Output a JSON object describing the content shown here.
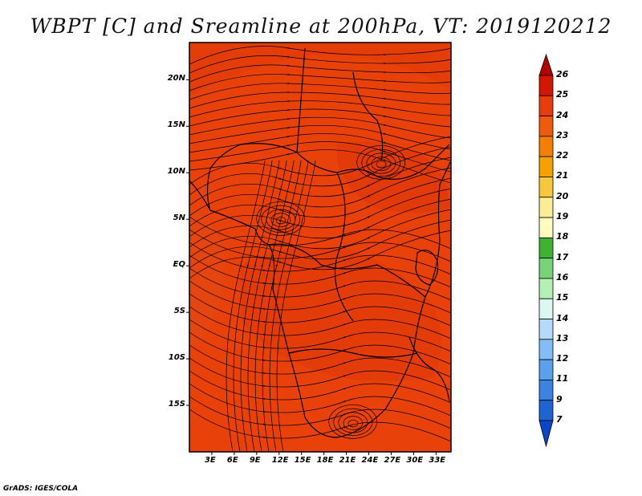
{
  "title": "WBPT [C] and Sreamline at 200hPa, VT: 2019120212",
  "credit": "GrADS: IGES/COLA",
  "map": {
    "lat_labels": [
      "20N",
      "15N",
      "10N",
      "5N",
      "EQ",
      "5S",
      "10S",
      "15S"
    ],
    "lon_labels": [
      "3E",
      "6E",
      "9E",
      "12E",
      "15E",
      "18E",
      "21E",
      "24E",
      "27E",
      "30E",
      "33E"
    ],
    "lat_range": [
      -20,
      24
    ],
    "lon_range": [
      0,
      35
    ],
    "field_color": "#e8420a",
    "dominant_field_level": "23-24",
    "streamline_color": "#000000"
  },
  "colorbar": {
    "labels": [
      "26",
      "25",
      "24",
      "23",
      "22",
      "21",
      "20",
      "19",
      "18",
      "17",
      "16",
      "15",
      "14",
      "13",
      "12",
      "11",
      "9",
      "7"
    ],
    "colors": [
      "#b40000",
      "#d21600",
      "#e83c0c",
      "#f05a0c",
      "#f57f00",
      "#f5a200",
      "#f8c83c",
      "#fcec94",
      "#fffcc0",
      "#3cb432",
      "#78d278",
      "#b4f0b4",
      "#dcf8f0",
      "#b4dcfa",
      "#82bef5",
      "#5aa0eb",
      "#3c82e1",
      "#1e64d2",
      "#0a46c8"
    ]
  }
}
